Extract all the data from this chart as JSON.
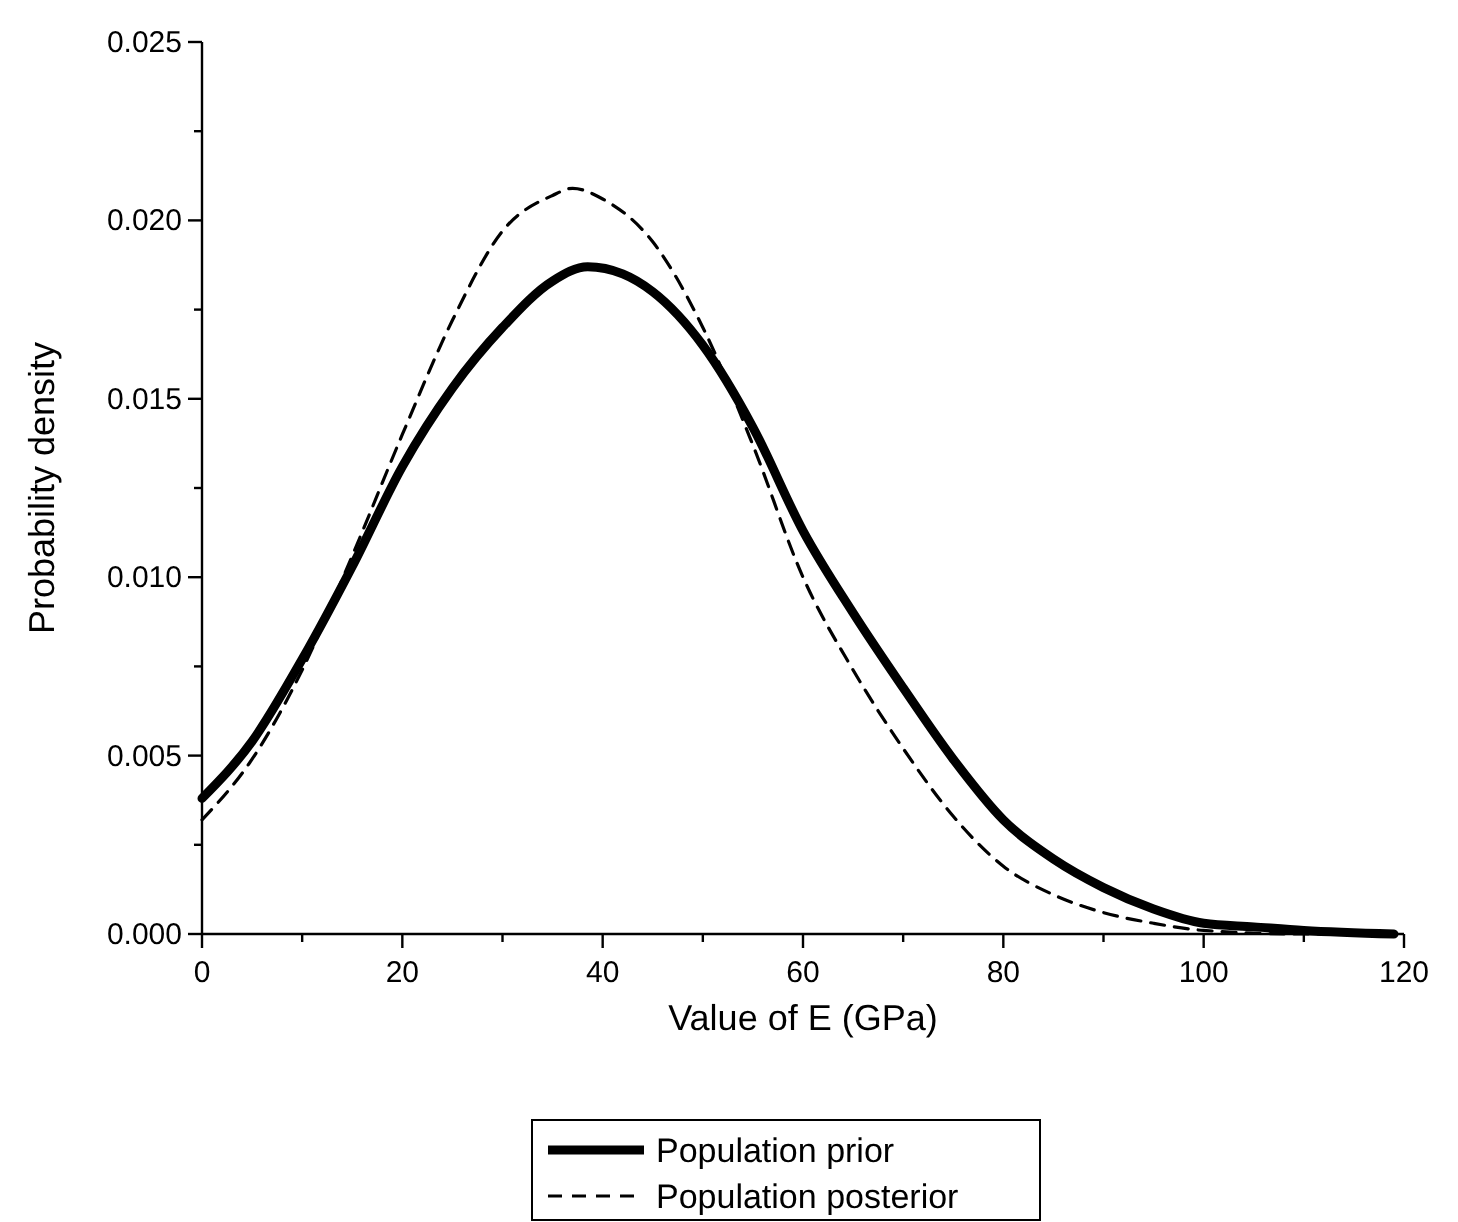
{
  "chart_data": {
    "type": "line",
    "xlabel": "Value of E (GPa)",
    "ylabel": "Probability density",
    "xlim": [
      0,
      120
    ],
    "ylim": [
      0,
      0.025
    ],
    "xticks": [
      0,
      {
        "value": 10,
        "label": null
      },
      20,
      {
        "value": 30,
        "label": null
      },
      40,
      {
        "value": 50,
        "label": null
      },
      60,
      {
        "value": 70,
        "label": null
      },
      80,
      {
        "value": 90,
        "label": null
      },
      100,
      {
        "value": 110,
        "label": null
      },
      120
    ],
    "yticks": [
      {
        "value": 0,
        "label": "0.000"
      },
      {
        "value": 0.0025,
        "label": null
      },
      {
        "value": 0.005,
        "label": "0.005"
      },
      {
        "value": 0.0075,
        "label": null
      },
      {
        "value": 0.01,
        "label": "0.010"
      },
      {
        "value": 0.0125,
        "label": null
      },
      {
        "value": 0.015,
        "label": "0.015"
      },
      {
        "value": 0.0175,
        "label": null
      },
      {
        "value": 0.02,
        "label": "0.020"
      },
      {
        "value": 0.0225,
        "label": null
      },
      {
        "value": 0.025,
        "label": "0.025"
      }
    ],
    "grid": false,
    "legend": "bottom",
    "marker": "none",
    "series": [
      {
        "name": "Population prior",
        "color": "#000000",
        "line_style": "solid",
        "x": [
          0,
          5,
          10,
          15,
          20,
          25,
          30,
          35,
          38.5,
          42,
          45,
          50,
          55,
          60,
          65,
          70,
          75,
          80,
          85,
          90,
          95,
          100,
          105,
          110,
          119
        ],
        "values": [
          0.0038,
          0.0054,
          0.0077,
          0.0103,
          0.0131,
          0.0153,
          0.017,
          0.0183,
          0.0187,
          0.0185,
          0.018,
          0.0165,
          0.0142,
          0.0113,
          0.009,
          0.0069,
          0.0049,
          0.0032,
          0.0021,
          0.0013,
          0.0007,
          0.0003,
          0.0002,
          0.0001,
          0
        ]
      },
      {
        "name": "Population posterior",
        "color": "#000000",
        "line_style": "dashed",
        "x": [
          0,
          5,
          10,
          15,
          20,
          25,
          30,
          35,
          37,
          40,
          45,
          50,
          55,
          60,
          65,
          70,
          75,
          80,
          85,
          90,
          95,
          100,
          110,
          119
        ],
        "values": [
          0.0032,
          0.0049,
          0.0074,
          0.0106,
          0.014,
          0.0172,
          0.0197,
          0.0207,
          0.0209,
          0.0206,
          0.0194,
          0.017,
          0.0137,
          0.01,
          0.0074,
          0.0052,
          0.0033,
          0.0019,
          0.0011,
          0.0006,
          0.0003,
          0.0001,
          0,
          0
        ]
      }
    ]
  }
}
